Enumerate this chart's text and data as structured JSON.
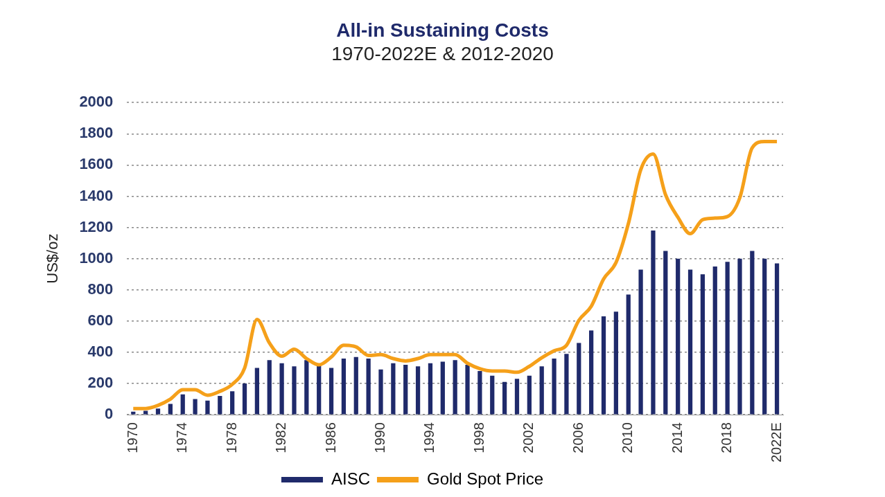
{
  "chart_data": {
    "type": "bar",
    "title": "All-in Sustaining Costs",
    "subtitle": "1970-2022E & 2012-2020",
    "ylabel": "US$/oz",
    "categories": [
      "1970",
      null,
      null,
      null,
      "1974",
      null,
      null,
      null,
      "1978",
      null,
      null,
      null,
      "1982",
      null,
      null,
      null,
      "1986",
      null,
      null,
      null,
      "1990",
      null,
      null,
      null,
      "1994",
      null,
      null,
      null,
      "1998",
      null,
      null,
      null,
      "2002",
      null,
      null,
      null,
      "2006",
      null,
      null,
      null,
      "2010",
      null,
      null,
      null,
      "2014",
      null,
      null,
      null,
      "2018",
      null,
      null,
      null,
      "2022E"
    ],
    "series": [
      {
        "name": "AISC",
        "color": "#1f2a6b",
        "values": [
          20,
          25,
          40,
          70,
          130,
          100,
          90,
          120,
          150,
          200,
          300,
          350,
          330,
          310,
          350,
          320,
          300,
          360,
          370,
          360,
          290,
          330,
          320,
          310,
          330,
          340,
          350,
          320,
          280,
          250,
          210,
          230,
          250,
          310,
          360,
          390,
          460,
          540,
          630,
          660,
          770,
          930,
          1180,
          1050,
          1000,
          930,
          900,
          950,
          980,
          1000,
          1050,
          1000,
          970
        ]
      },
      {
        "name": "Gold Spot Price",
        "type": "line",
        "color": "#f5a01a",
        "values": [
          40,
          40,
          60,
          100,
          160,
          160,
          125,
          150,
          195,
          300,
          610,
          460,
          375,
          420,
          360,
          320,
          370,
          445,
          435,
          380,
          385,
          360,
          345,
          360,
          385,
          385,
          385,
          330,
          295,
          280,
          280,
          272,
          310,
          365,
          410,
          445,
          605,
          695,
          870,
          975,
          1225,
          1570,
          1670,
          1410,
          1265,
          1160,
          1250,
          1260,
          1270,
          1390,
          1710,
          1750,
          1750
        ]
      }
    ],
    "ylim": [
      0,
      2000
    ],
    "yticks": [
      0,
      200,
      400,
      600,
      800,
      1000,
      1200,
      1400,
      1600,
      1800,
      2000
    ],
    "grid": "y",
    "legend": "bottom",
    "marker": "none",
    "line_style": "solid"
  }
}
